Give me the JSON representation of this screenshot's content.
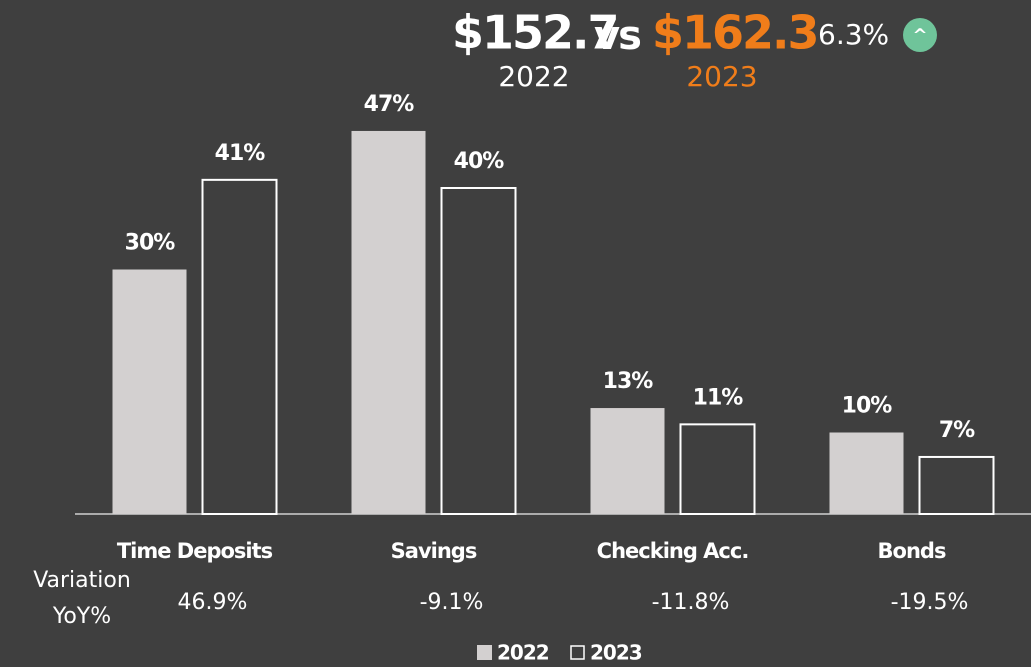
{
  "chart_data": {
    "type": "bar",
    "header": {
      "value_2022": "$152.7",
      "vs": "vs",
      "value_2023": "$162.3",
      "year_2022": "2022",
      "year_2023": "2023",
      "change": "6.3%",
      "change_icon": "^"
    },
    "categories": [
      "Time Deposits",
      "Savings",
      "Checking Acc.",
      "Bonds"
    ],
    "series": [
      {
        "name": "2022",
        "color": "#d3d0d0",
        "values": [
          30,
          47,
          13,
          10
        ],
        "value_labels": [
          "30%",
          "47%",
          "13%",
          "10%"
        ]
      },
      {
        "name": "2023",
        "color": "#ffffff",
        "values": [
          41,
          40,
          11,
          7
        ],
        "value_labels": [
          "41%",
          "40%",
          "11%",
          "7%"
        ]
      }
    ],
    "variation": {
      "label": [
        "Variation",
        "YoY%"
      ],
      "values": [
        46.9,
        -9.1,
        -11.8,
        -19.5
      ],
      "value_labels": [
        "46.9%",
        "-9.1%",
        "-11.8%",
        "-19.5%"
      ]
    },
    "ylim": [
      0,
      50
    ],
    "legend": "bottom"
  }
}
